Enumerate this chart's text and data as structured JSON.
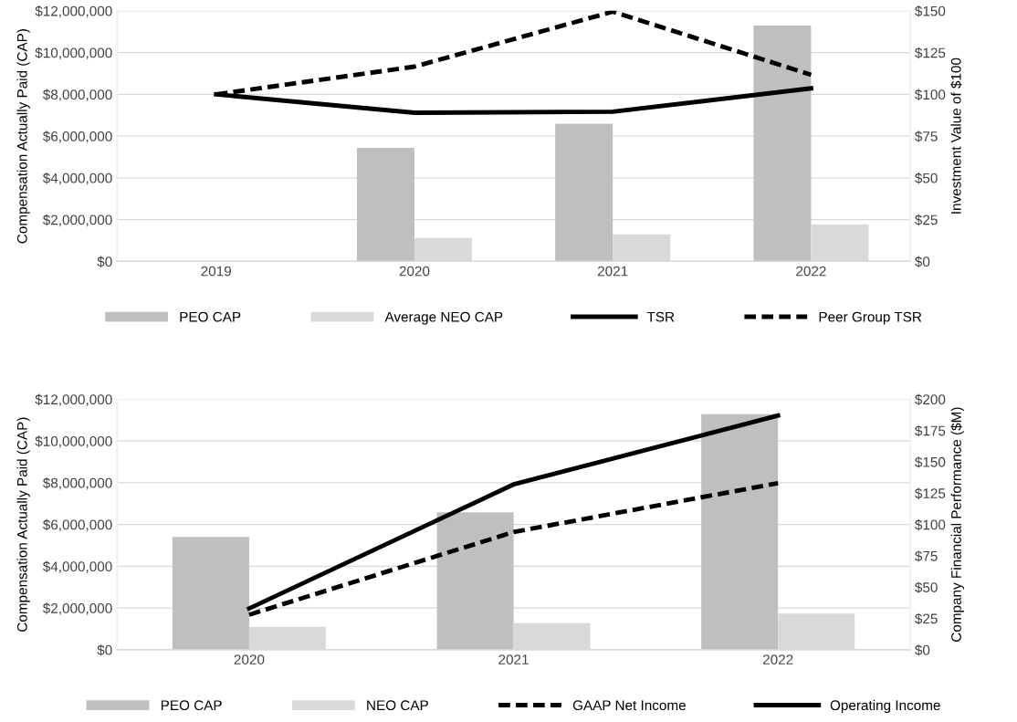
{
  "chart_data": [
    {
      "type": "bar",
      "categories": [
        "2019",
        "2020",
        "2021",
        "2022"
      ],
      "ylabel": "Compensation Actually Paid (CAP)",
      "y2label": "Investment Value of $100",
      "ylim": [
        0,
        12000000
      ],
      "yticks": [
        {
          "value": 0,
          "label": "$0"
        },
        {
          "value": 2000000,
          "label": "$2,000,000"
        },
        {
          "value": 4000000,
          "label": "$4,000,000"
        },
        {
          "value": 6000000,
          "label": "$6,000,000"
        },
        {
          "value": 8000000,
          "label": "$8,000,000"
        },
        {
          "value": 10000000,
          "label": "$10,000,000"
        },
        {
          "value": 12000000,
          "label": "$12,000,000"
        }
      ],
      "y2lim": [
        0,
        150
      ],
      "y2ticks": [
        {
          "value": 0,
          "label": "$0"
        },
        {
          "value": 25,
          "label": "$25"
        },
        {
          "value": 50,
          "label": "$50"
        },
        {
          "value": 75,
          "label": "$75"
        },
        {
          "value": 100,
          "label": "$100"
        },
        {
          "value": 125,
          "label": "$125"
        },
        {
          "value": 150,
          "label": "$150"
        }
      ],
      "grid": "y",
      "legend": "bottom",
      "series": [
        {
          "name": "PEO CAP",
          "color": "#bfbfbf",
          "values": [
            null,
            5440000,
            6600000,
            11300000
          ]
        },
        {
          "name": "Average NEO CAP",
          "color": "#d9d9d9",
          "values": [
            null,
            1120000,
            1300000,
            1770000
          ]
        },
        {
          "name": "TSR",
          "type": "line",
          "axis": "y2",
          "line_style": "solid",
          "color": "#000000",
          "values": [
            100,
            89,
            89.6,
            103.6
          ]
        },
        {
          "name": "Peer Group TSR",
          "type": "line",
          "axis": "y2",
          "line_style": "dashed",
          "color": "#000000",
          "values": [
            100,
            116.6,
            149.5,
            111.7
          ]
        }
      ]
    },
    {
      "type": "bar",
      "categories": [
        "2020",
        "2021",
        "2022"
      ],
      "ylabel": "Compensation Actually Paid (CAP)",
      "y2label": "Company Financial Performance ($M)",
      "ylim": [
        0,
        12000000
      ],
      "yticks": [
        {
          "value": 0,
          "label": "$0"
        },
        {
          "value": 2000000,
          "label": "$2,000,000"
        },
        {
          "value": 4000000,
          "label": "$4,000,000"
        },
        {
          "value": 6000000,
          "label": "$6,000,000"
        },
        {
          "value": 8000000,
          "label": "$8,000,000"
        },
        {
          "value": 10000000,
          "label": "$10,000,000"
        },
        {
          "value": 12000000,
          "label": "$12,000,000"
        }
      ],
      "y2lim": [
        0,
        200
      ],
      "y2ticks": [
        {
          "value": 0,
          "label": "$0"
        },
        {
          "value": 25,
          "label": "$25"
        },
        {
          "value": 50,
          "label": "$50"
        },
        {
          "value": 75,
          "label": "$75"
        },
        {
          "value": 100,
          "label": "$100"
        },
        {
          "value": 125,
          "label": "$125"
        },
        {
          "value": 150,
          "label": "$150"
        },
        {
          "value": 175,
          "label": "$175"
        },
        {
          "value": 200,
          "label": "$200"
        }
      ],
      "grid": "y",
      "legend": "bottom",
      "series": [
        {
          "name": "PEO CAP",
          "color": "#bfbfbf",
          "values": [
            5410000,
            6590000,
            11280000
          ]
        },
        {
          "name": "NEO CAP",
          "color": "#d9d9d9",
          "values": [
            1100000,
            1270000,
            1730000
          ]
        },
        {
          "name": "GAAP Net Income",
          "type": "line",
          "axis": "y2",
          "line_style": "dashed",
          "color": "#000000",
          "values": [
            28,
            94,
            133
          ]
        },
        {
          "name": "Operating Income",
          "type": "line",
          "axis": "y2",
          "line_style": "solid",
          "color": "#000000",
          "values": [
            33,
            132,
            187
          ]
        }
      ]
    }
  ]
}
